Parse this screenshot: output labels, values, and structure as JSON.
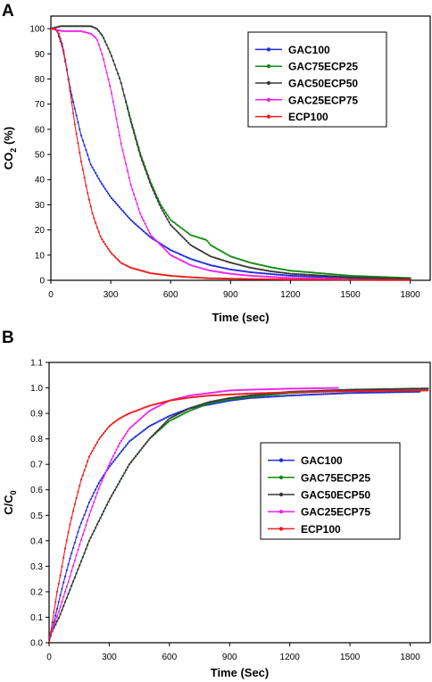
{
  "colors": {
    "GAC100": "#1f2fd8",
    "GAC75ECP25": "#138a13",
    "GAC50ECP50": "#3a3a3a",
    "GAC25ECP75": "#f21ef2",
    "ECP100": "#ee1b1b"
  },
  "chart_data": [
    {
      "panel": "A",
      "type": "line",
      "xlabel": "Time (sec)",
      "ylabel": "CO2 (%)",
      "ylabel_main": "CO",
      "ylabel_sub": "2",
      "ylabel_rest": " (%)",
      "xlim": [
        0,
        1900
      ],
      "ylim": [
        0,
        105
      ],
      "xticks": [
        0,
        300,
        600,
        900,
        1200,
        1500,
        1800
      ],
      "yticks": [
        0,
        10,
        20,
        30,
        40,
        50,
        60,
        70,
        80,
        90,
        100
      ],
      "legend_position": "top-right",
      "series": [
        {
          "name": "GAC100",
          "x": [
            0,
            30,
            60,
            100,
            150,
            200,
            250,
            300,
            400,
            500,
            600,
            700,
            800,
            900,
            1000,
            1200,
            1500,
            1800
          ],
          "y": [
            100,
            99.5,
            92,
            75,
            58,
            46,
            39,
            33,
            24,
            17,
            12,
            8.5,
            6,
            4.3,
            3.2,
            1.8,
            0.9,
            0.5
          ]
        },
        {
          "name": "GAC75ECP25",
          "x": [
            0,
            50,
            100,
            150,
            200,
            230,
            260,
            300,
            350,
            400,
            450,
            500,
            550,
            600,
            700,
            780,
            800,
            900,
            1000,
            1100,
            1200,
            1500,
            1800
          ],
          "y": [
            100,
            101,
            101,
            101,
            101,
            100,
            97,
            90,
            79,
            64,
            50,
            39,
            30,
            24,
            18,
            16,
            14,
            9.5,
            7,
            5.2,
            3.8,
            1.8,
            0.9
          ]
        },
        {
          "name": "GAC50ECP50",
          "x": [
            0,
            50,
            100,
            150,
            200,
            230,
            260,
            300,
            350,
            400,
            450,
            500,
            550,
            600,
            700,
            800,
            900,
            1000,
            1100,
            1200,
            1500,
            1800
          ],
          "y": [
            100,
            101,
            101,
            101,
            101,
            100,
            97,
            90,
            79,
            63,
            49,
            38,
            29,
            22,
            14,
            9.5,
            7,
            5,
            3.6,
            2.6,
            1.2,
            0.6
          ]
        },
        {
          "name": "GAC25ECP75",
          "x": [
            0,
            30,
            60,
            100,
            150,
            200,
            230,
            260,
            300,
            350,
            400,
            450,
            500,
            600,
            700,
            800,
            900,
            1000,
            1200,
            1450
          ],
          "y": [
            100,
            99.5,
            99,
            99,
            99,
            98,
            96,
            89,
            76,
            55,
            38,
            26,
            18,
            10,
            6,
            3.8,
            2.6,
            1.8,
            0.9,
            0.5
          ]
        },
        {
          "name": "ECP100",
          "x": [
            0,
            20,
            40,
            60,
            80,
            100,
            120,
            150,
            180,
            210,
            250,
            300,
            350,
            400,
            500,
            600,
            700,
            800,
            1000,
            1200,
            1500,
            1800
          ],
          "y": [
            100,
            100,
            98,
            93,
            84,
            73,
            62,
            48,
            36,
            26,
            17,
            11,
            7,
            5,
            2.8,
            1.8,
            1.2,
            0.8,
            0.5,
            0.3,
            0.2,
            0.1
          ]
        }
      ]
    },
    {
      "panel": "B",
      "type": "line",
      "xlabel": "Time (Sec)",
      "ylabel": "C/C0",
      "ylabel_main": "C/C",
      "ylabel_sub": "0",
      "xlim": [
        0,
        1900
      ],
      "ylim": [
        0,
        1.1
      ],
      "xticks": [
        0,
        300,
        600,
        900,
        1200,
        1500,
        1800
      ],
      "yticks": [
        0.0,
        0.1,
        0.2,
        0.3,
        0.4,
        0.5,
        0.6,
        0.7,
        0.8,
        0.9,
        1.0,
        1.1
      ],
      "legend_position": "center-right",
      "series": [
        {
          "name": "GAC100",
          "x": [
            0,
            30,
            60,
            100,
            150,
            200,
            250,
            300,
            400,
            500,
            600,
            700,
            800,
            900,
            1000,
            1200,
            1500,
            1850
          ],
          "y": [
            0.0,
            0.1,
            0.2,
            0.32,
            0.45,
            0.55,
            0.63,
            0.69,
            0.79,
            0.85,
            0.89,
            0.92,
            0.935,
            0.95,
            0.96,
            0.97,
            0.98,
            0.985
          ]
        },
        {
          "name": "GAC75ECP25",
          "x": [
            0,
            50,
            100,
            150,
            200,
            300,
            400,
            500,
            600,
            700,
            800,
            900,
            1000,
            1200,
            1500,
            1890
          ],
          "y": [
            0.02,
            0.1,
            0.2,
            0.3,
            0.4,
            0.56,
            0.7,
            0.8,
            0.87,
            0.91,
            0.94,
            0.955,
            0.965,
            0.98,
            0.99,
            0.997
          ]
        },
        {
          "name": "GAC50ECP50",
          "x": [
            0,
            50,
            100,
            150,
            200,
            300,
            400,
            500,
            600,
            700,
            800,
            900,
            1000,
            1200,
            1500,
            1890
          ],
          "y": [
            0.02,
            0.1,
            0.2,
            0.3,
            0.4,
            0.56,
            0.7,
            0.8,
            0.88,
            0.92,
            0.945,
            0.96,
            0.97,
            0.985,
            0.993,
            0.998
          ]
        },
        {
          "name": "GAC25ECP75",
          "x": [
            0,
            30,
            60,
            100,
            150,
            200,
            250,
            300,
            350,
            400,
            500,
            600,
            700,
            800,
            900,
            1000,
            1200,
            1440
          ],
          "y": [
            0.02,
            0.08,
            0.15,
            0.25,
            0.38,
            0.5,
            0.61,
            0.7,
            0.78,
            0.84,
            0.91,
            0.95,
            0.97,
            0.98,
            0.99,
            0.993,
            0.997,
            1.0
          ]
        },
        {
          "name": "ECP100",
          "x": [
            0,
            20,
            40,
            60,
            80,
            100,
            130,
            160,
            200,
            250,
            300,
            350,
            400,
            500,
            600,
            700,
            800,
            1000,
            1200,
            1500,
            1890
          ],
          "y": [
            0.0,
            0.1,
            0.2,
            0.28,
            0.37,
            0.45,
            0.55,
            0.64,
            0.73,
            0.8,
            0.85,
            0.88,
            0.9,
            0.93,
            0.95,
            0.962,
            0.97,
            0.978,
            0.983,
            0.987,
            0.99
          ]
        }
      ]
    }
  ]
}
